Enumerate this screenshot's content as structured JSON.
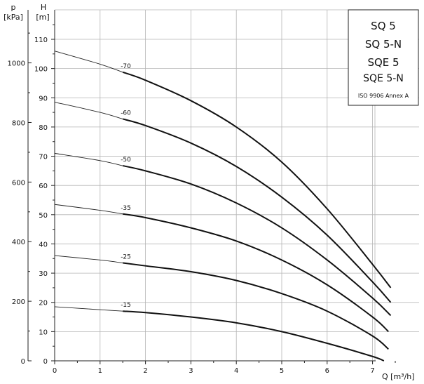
{
  "chart_data": {
    "type": "line",
    "title": "",
    "xlabel": "Q [m³/h]",
    "ylabel_left": "p\n[kPa]",
    "ylabel_right": "H\n[m]",
    "xlim": [
      0,
      7.6
    ],
    "ylim": [
      0,
      118
    ],
    "p_axis_ticks": [
      0,
      200,
      400,
      600,
      800,
      1000
    ],
    "h_axis_ticks": [
      0,
      10,
      20,
      30,
      40,
      50,
      60,
      70,
      80,
      90,
      100,
      110
    ],
    "x_ticks": [
      0,
      1,
      2,
      3,
      4,
      5,
      6,
      7
    ],
    "grid": true,
    "legend": {
      "placement": "top-right",
      "lines": [
        "SQ 5",
        "SQ 5-N",
        "SQE 5",
        "SQE 5-N"
      ],
      "standard": "ISO 9906 Annex A"
    },
    "series": [
      {
        "name": "-70",
        "thin_end_x": 1.5,
        "x": [
          0,
          1,
          2,
          3,
          4,
          5,
          6,
          7,
          7.4
        ],
        "y": [
          106,
          101.5,
          96,
          89,
          80,
          68,
          52,
          33,
          25
        ]
      },
      {
        "name": "-60",
        "thin_end_x": 1.5,
        "x": [
          0,
          1,
          2,
          3,
          4,
          5,
          6,
          7,
          7.4
        ],
        "y": [
          88.5,
          85,
          80.5,
          74.5,
          66.5,
          56,
          43,
          27,
          20
        ]
      },
      {
        "name": "-50",
        "thin_end_x": 1.5,
        "x": [
          0,
          1,
          2,
          3,
          4,
          5,
          6,
          7,
          7.4
        ],
        "y": [
          71,
          68.5,
          65,
          60.5,
          54,
          45.5,
          34.5,
          21.5,
          15.5
        ]
      },
      {
        "name": "-35",
        "thin_end_x": 1.5,
        "x": [
          0,
          1,
          2,
          3,
          4,
          5,
          6,
          7,
          7.35
        ],
        "y": [
          53.5,
          51.5,
          49,
          45.5,
          41,
          34.5,
          26,
          15,
          10
        ]
      },
      {
        "name": "-25",
        "thin_end_x": 1.5,
        "x": [
          0,
          1,
          2,
          3,
          4,
          5,
          6,
          7,
          7.35
        ],
        "y": [
          36,
          34.5,
          32.5,
          30.5,
          27.5,
          23,
          17,
          8.5,
          4
        ]
      },
      {
        "name": "-15",
        "thin_end_x": 1.5,
        "x": [
          0,
          1,
          2,
          3,
          4,
          5,
          6,
          7,
          7.25
        ],
        "y": [
          18.5,
          17.5,
          16.5,
          15,
          13,
          10,
          6,
          1.5,
          0
        ]
      }
    ]
  }
}
